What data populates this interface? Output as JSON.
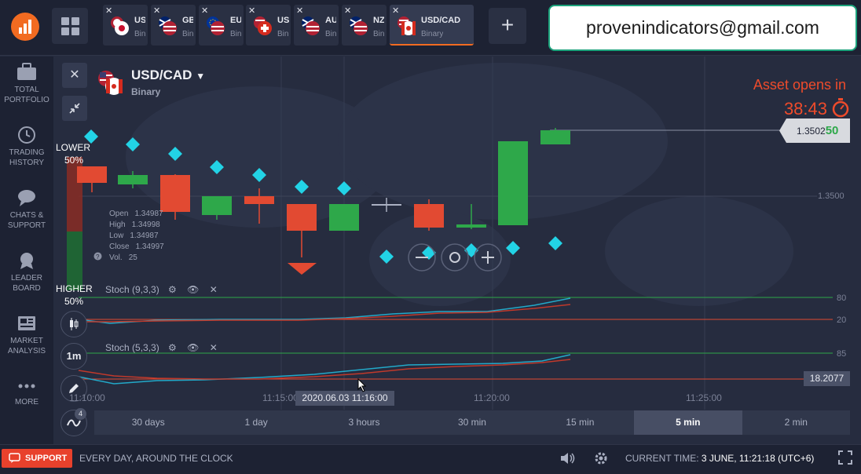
{
  "top_tabs": [
    {
      "symbol": "USD",
      "sub": "Bina",
      "flag": "jp"
    },
    {
      "symbol": "GB",
      "sub": "Bin",
      "flag": "gb"
    },
    {
      "symbol": "EU",
      "sub": "Bin",
      "flag": "eu"
    },
    {
      "symbol": "USI",
      "sub": "Bin",
      "flag": "ch"
    },
    {
      "symbol": "AU",
      "sub": "Bin",
      "flag": "au"
    },
    {
      "symbol": "NZ",
      "sub": "Bin",
      "flag": "nz"
    },
    {
      "symbol": "USD/CAD",
      "sub": "Binary",
      "flag": "ca"
    }
  ],
  "add_tab_symbol": "+",
  "email": "provenindicators@gmail.com",
  "sidebar": [
    {
      "label": "TOTAL PORTFOLIO",
      "icon": "briefcase-icon"
    },
    {
      "label": "TRADING HISTORY",
      "icon": "history-icon"
    },
    {
      "label": "CHATS & SUPPORT",
      "icon": "chat-icon"
    },
    {
      "label": "LEADER BOARD",
      "icon": "medal-icon"
    },
    {
      "label": "MARKET ANALYSIS",
      "icon": "news-icon"
    },
    {
      "label": "MORE",
      "icon": "more-icon"
    }
  ],
  "asset": {
    "name": "USD/CAD",
    "type": "Binary"
  },
  "asset_opens": {
    "label": "Asset opens in",
    "time": "38:43"
  },
  "lower": {
    "label": "LOWER",
    "pct": "50%"
  },
  "higher": {
    "label": "HIGHER",
    "pct": "50%"
  },
  "ohlc": [
    {
      "k": "Open",
      "v": "1.34987"
    },
    {
      "k": "High",
      "v": "1.34998"
    },
    {
      "k": "Low",
      "v": "1.34987"
    },
    {
      "k": "Close",
      "v": "1.34997"
    },
    {
      "k": "Vol.",
      "v": "25"
    }
  ],
  "price_tag": {
    "main": "1.3502",
    "last": "50"
  },
  "price_level": "1.3500",
  "indicators": [
    {
      "name": "Stoch (9,3,3)",
      "upper": "80",
      "lower": "20"
    },
    {
      "name": "Stoch (5,3,3)",
      "upper": "85",
      "value": "18.2077"
    }
  ],
  "time_axis": [
    "11:10:00",
    "11:15:00",
    "11:20:00",
    "11:25:00"
  ],
  "cursor_time": "2020.06.03 11:16:00",
  "timeframe": "1m",
  "indicator_count": "4",
  "periods": [
    "30 days",
    "1 day",
    "3 hours",
    "30 min",
    "15 min",
    "5 min",
    "2 min"
  ],
  "active_period": "5 min",
  "bottom": {
    "support_label": "SUPPORT",
    "tagline": "EVERY DAY, AROUND THE CLOCK",
    "current_time_label": "CURRENT TIME:",
    "current_time_value": "3 JUNE, 11:21:18 (UTC+6)"
  },
  "colors": {
    "bull": "#2ea84a",
    "bear": "#e24a32",
    "signal": "#22d3e6",
    "accent": "#f26b21"
  }
}
